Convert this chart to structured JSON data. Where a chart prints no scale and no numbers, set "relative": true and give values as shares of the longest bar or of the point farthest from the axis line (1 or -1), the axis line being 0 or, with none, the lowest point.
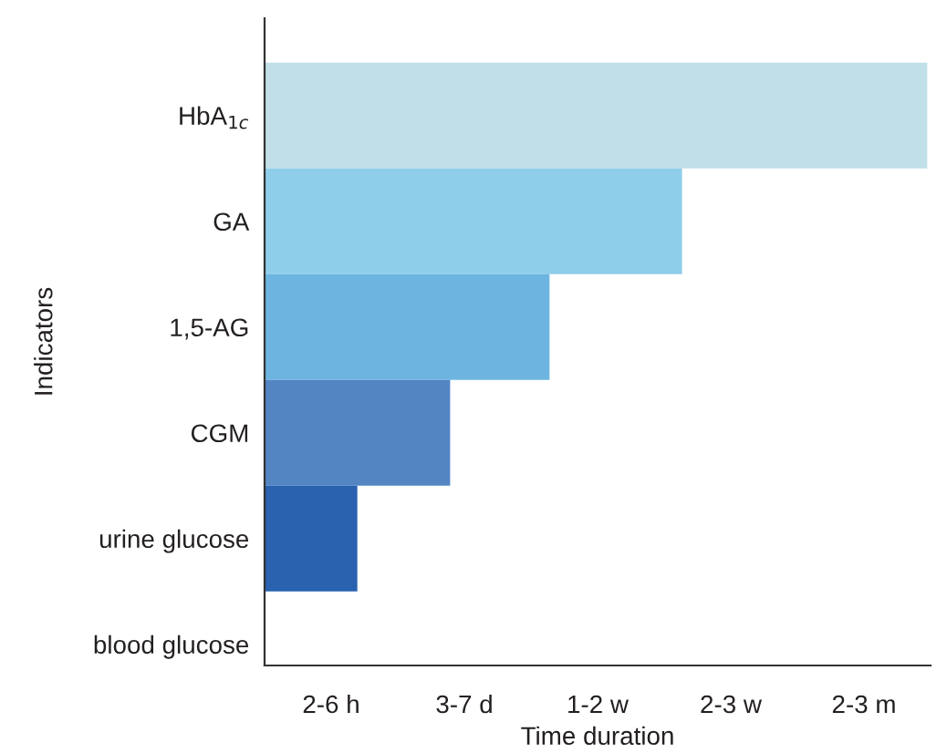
{
  "chart_data": {
    "type": "bar",
    "orientation": "horizontal",
    "relative": true,
    "xlabel": "Time duration",
    "ylabel": "Indicators",
    "categories": [
      "HbA$_{1c}$",
      "GA",
      "1,5-AG",
      "CGM",
      "urine glucose",
      "blood glucose"
    ],
    "values": [
      1,
      0.63,
      0.43,
      0.28,
      0.14,
      0
    ],
    "colors": [
      "#c0dfe9",
      "#8fceea",
      "#6db5e0",
      "#5385c3",
      "#2a62b0",
      "#1f4f9a"
    ],
    "annotations": [
      "2-6 h",
      "3-7 d",
      "1-2 w",
      "2-3 w",
      "2-3 m"
    ]
  }
}
